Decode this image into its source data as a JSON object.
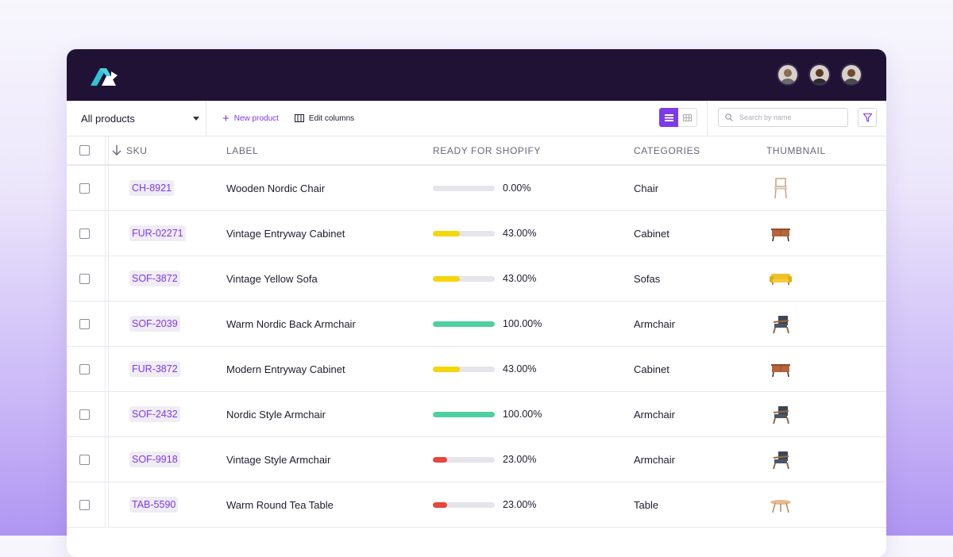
{
  "header": {
    "avatars": [
      {
        "name": "avatar-1",
        "color": "#8a6b55"
      },
      {
        "name": "avatar-2",
        "color": "#5b3a2c"
      },
      {
        "name": "avatar-3",
        "color": "#6e4a36"
      }
    ]
  },
  "toolbar": {
    "selector_label": "All products",
    "new_product_label": "New product",
    "edit_columns_label": "Edit columns",
    "search_placeholder": "Search by name"
  },
  "table": {
    "columns": [
      "SKU",
      "LABEL",
      "READY FOR SHOPIFY",
      "CATEGORIES",
      "THUMBNAIL"
    ],
    "rows": [
      {
        "sku": "CH-8921",
        "label": "Wooden Nordic Chair",
        "progress": 0,
        "progress_text": "0.00%",
        "category": "Chair",
        "thumb": "chair-icon",
        "color": "#e6e4ec"
      },
      {
        "sku": "FUR-02271",
        "label": "Vintage Entryway Cabinet",
        "progress": 43,
        "progress_text": "43.00%",
        "category": "Cabinet",
        "thumb": "cabinet-icon",
        "color": "#f5d60a"
      },
      {
        "sku": "SOF-3872",
        "label": "Vintage Yellow Sofa",
        "progress": 43,
        "progress_text": "43.00%",
        "category": "Sofas",
        "thumb": "sofa-icon",
        "color": "#f5d60a"
      },
      {
        "sku": "SOF-2039",
        "label": "Warm Nordic Back Armchair",
        "progress": 100,
        "progress_text": "100.00%",
        "category": "Armchair",
        "thumb": "armchair-icon",
        "color": "#4fd0a0"
      },
      {
        "sku": "FUR-3872",
        "label": "Modern Entryway Cabinet",
        "progress": 43,
        "progress_text": "43.00%",
        "category": "Cabinet",
        "thumb": "cabinet-icon",
        "color": "#f5d60a"
      },
      {
        "sku": "SOF-2432",
        "label": "Nordic Style Armchair",
        "progress": 100,
        "progress_text": "100.00%",
        "category": "Armchair",
        "thumb": "armchair-icon",
        "color": "#4fd0a0"
      },
      {
        "sku": "SOF-9918",
        "label": "Vintage Style Armchair",
        "progress": 23,
        "progress_text": "23.00%",
        "category": "Armchair",
        "thumb": "armchair-icon",
        "color": "#e8453c"
      },
      {
        "sku": "TAB-5590",
        "label": "Warm Round Tea Table",
        "progress": 23,
        "progress_text": "23.00%",
        "category": "Table",
        "thumb": "table-icon",
        "color": "#e8453c"
      }
    ]
  },
  "colors": {
    "accent": "#7c3aed",
    "topbar": "#1f1235",
    "green": "#4fd0a0",
    "yellow": "#f5d60a",
    "red": "#e8453c"
  }
}
